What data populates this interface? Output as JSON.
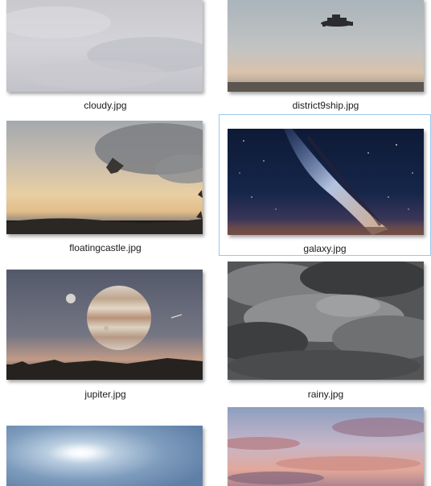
{
  "files": [
    {
      "name": "cloudy.jpg",
      "selected": false
    },
    {
      "name": "district9ship.jpg",
      "selected": false
    },
    {
      "name": "floatingcastle.jpg",
      "selected": false
    },
    {
      "name": "galaxy.jpg",
      "selected": true
    },
    {
      "name": "jupiter.jpg",
      "selected": false
    },
    {
      "name": "rainy.jpg",
      "selected": false
    },
    {
      "name": "",
      "selected": false
    },
    {
      "name": "",
      "selected": false
    }
  ]
}
